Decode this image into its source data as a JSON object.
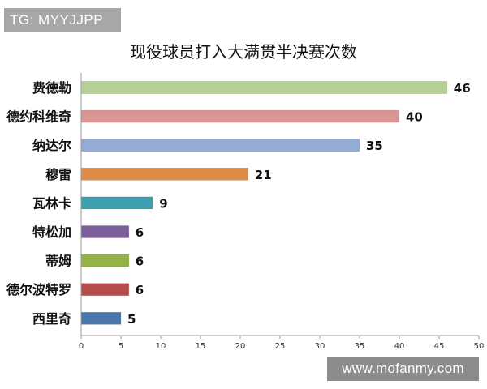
{
  "badge_text": "TG: MYYJJPP",
  "watermark_text": "www.mofanmy.com",
  "chart_data": {
    "type": "bar",
    "orientation": "horizontal",
    "title": "现役球员打入大满贯半决赛次数",
    "xlabel": "",
    "ylabel": "",
    "categories": [
      "费德勒",
      "德约科维奇",
      "纳达尔",
      "穆雷",
      "瓦林卡",
      "特松加",
      "蒂姆",
      "德尔波特罗",
      "西里奇"
    ],
    "values": [
      46,
      40,
      35,
      21,
      9,
      6,
      6,
      6,
      5
    ],
    "colors": [
      "#b5cf95",
      "#d99594",
      "#94abd4",
      "#e08b45",
      "#3da0b1",
      "#7a5f9a",
      "#93b248",
      "#b74d4a",
      "#4a78ad"
    ],
    "xlim": [
      0,
      50
    ],
    "xticks": [
      0,
      5,
      10,
      15,
      20,
      25,
      30,
      35,
      40,
      45,
      50
    ],
    "data_labels": true,
    "grid": false,
    "legend": "none"
  }
}
